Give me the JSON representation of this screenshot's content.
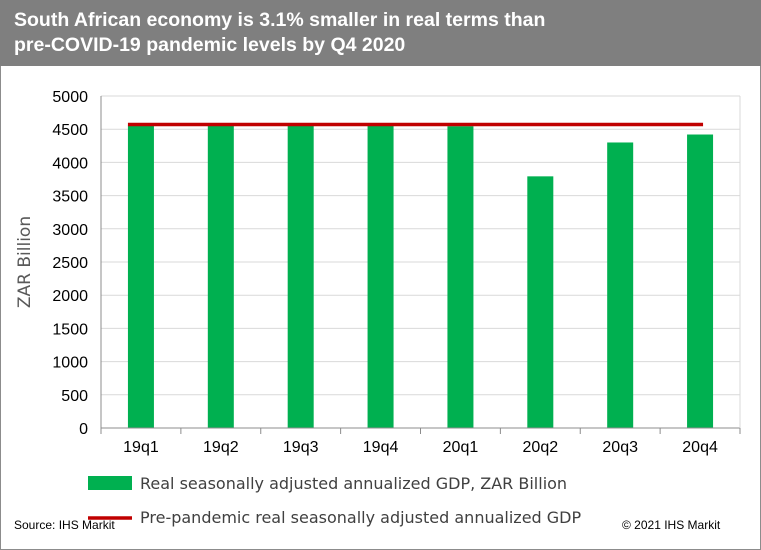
{
  "title": "South African economy is 3.1% smaller in real terms than\npre-COVID-19 pandemic levels by Q4 2020",
  "source": "Source: IHS Markit",
  "copyright": "© 2021 IHS Markit",
  "chart_data": {
    "type": "bar",
    "title": "South African economy is 3.1% smaller in real terms than pre-COVID-19 pandemic levels by Q4 2020",
    "xlabel": "",
    "ylabel": "ZAR Billion",
    "ylim": [
      0,
      5000
    ],
    "yticks": [
      0,
      500,
      1000,
      1500,
      2000,
      2500,
      3000,
      3500,
      4000,
      4500,
      5000
    ],
    "grid": true,
    "legend_position": "bottom",
    "categories": [
      "19q1",
      "19q2",
      "19q3",
      "19q4",
      "20q1",
      "20q2",
      "20q3",
      "20q4"
    ],
    "series": [
      {
        "name": "Real seasonally adjusted annualized GDP, ZAR Billion",
        "kind": "bar",
        "color": "#00b050",
        "values": [
          4555,
          4585,
          4575,
          4560,
          4545,
          3790,
          4300,
          4420
        ]
      },
      {
        "name": "Pre-pandemic real seasonally adjusted annualized GDP",
        "kind": "line",
        "color": "#c00000",
        "values": [
          4570,
          4570,
          4570,
          4570,
          4570,
          4570,
          4570,
          4570
        ]
      }
    ]
  }
}
